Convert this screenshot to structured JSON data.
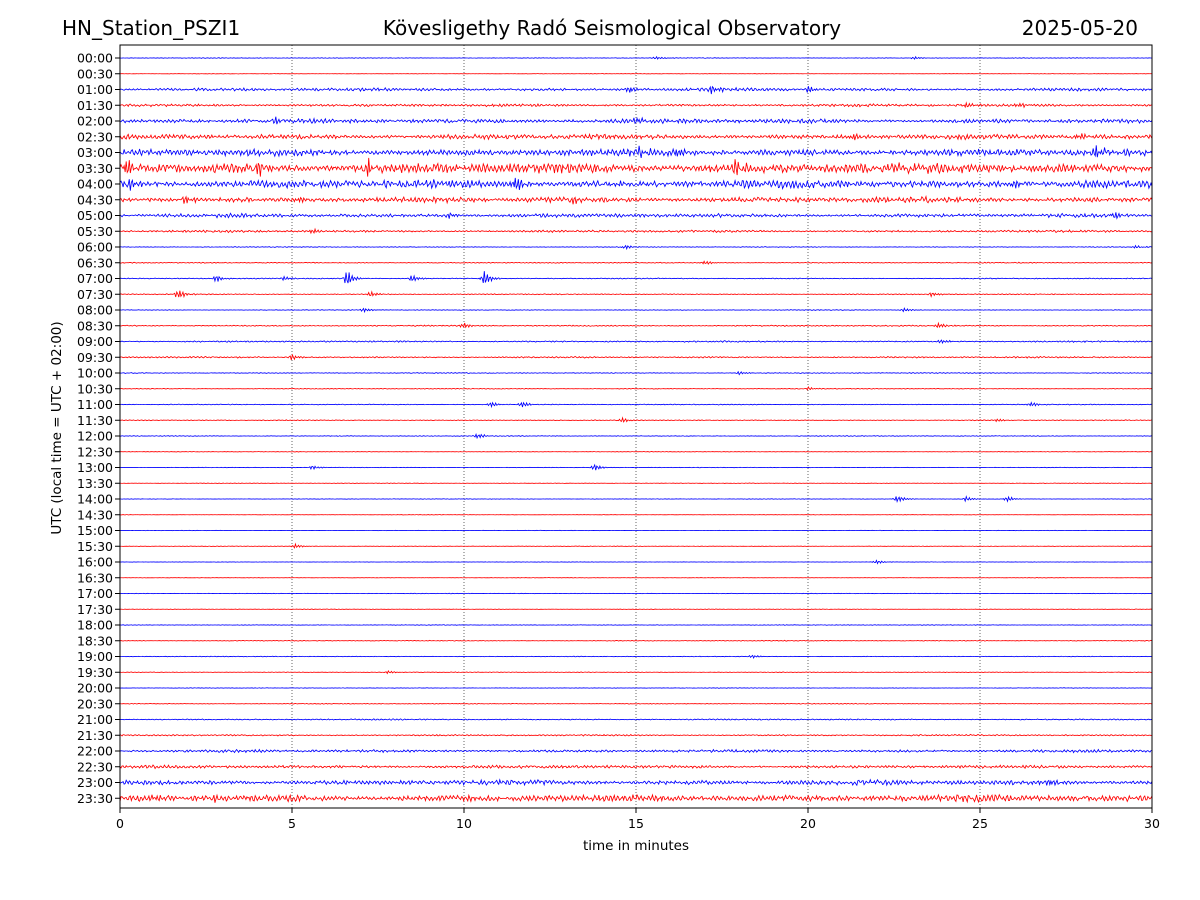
{
  "header": {
    "station": "HN_Station_PSZI1",
    "observatory": "Kövesligethy Radó Seismological Observatory",
    "date": "2025-05-20"
  },
  "chart_data": {
    "type": "line",
    "chart_kind": "seismic helicorder",
    "xlabel": "time in minutes",
    "ylabel": "UTC (local time = UTC + 02:00)",
    "xlim": [
      0,
      30
    ],
    "x_ticks": [
      "0",
      "5",
      "10",
      "15",
      "20",
      "25",
      "30"
    ],
    "x_tick_values": [
      0,
      5,
      10,
      15,
      20,
      25,
      30
    ],
    "vertical_gridlines_at": [
      5,
      10,
      15,
      20,
      25
    ],
    "grid": "vertical dotted",
    "trace_colors": [
      "#0000ff",
      "#ff0000"
    ],
    "rows": [
      {
        "label": "00:00",
        "activity": 0.05,
        "events": [
          {
            "t": 15.6,
            "a": 0.3
          },
          {
            "t": 23.1,
            "a": 0.25
          }
        ]
      },
      {
        "label": "00:30",
        "activity": 0.03,
        "events": []
      },
      {
        "label": "01:00",
        "activity": 0.25,
        "events": [
          {
            "t": 14.8,
            "a": 0.6
          },
          {
            "t": 17.2,
            "a": 0.7
          },
          {
            "t": 20.0,
            "a": 0.6
          }
        ]
      },
      {
        "label": "01:30",
        "activity": 0.22,
        "events": [
          {
            "t": 24.6,
            "a": 0.5
          },
          {
            "t": 26.1,
            "a": 0.5
          }
        ]
      },
      {
        "label": "02:00",
        "activity": 0.35,
        "events": [
          {
            "t": 4.5,
            "a": 0.5
          },
          {
            "t": 15.0,
            "a": 0.6
          }
        ]
      },
      {
        "label": "02:30",
        "activity": 0.4,
        "events": [
          {
            "t": 21.3,
            "a": 0.8
          },
          {
            "t": 27.9,
            "a": 0.6
          }
        ]
      },
      {
        "label": "03:00",
        "activity": 0.55,
        "events": [
          {
            "t": 15.1,
            "a": 0.9
          },
          {
            "t": 16.2,
            "a": 0.9
          },
          {
            "t": 28.4,
            "a": 1.2
          }
        ]
      },
      {
        "label": "03:30",
        "activity": 0.85,
        "events": [
          {
            "t": 0.2,
            "a": 1.4
          },
          {
            "t": 4.0,
            "a": 1.5
          },
          {
            "t": 7.2,
            "a": 1.4
          },
          {
            "t": 17.9,
            "a": 1.2
          }
        ]
      },
      {
        "label": "04:00",
        "activity": 0.65,
        "events": [
          {
            "t": 0.3,
            "a": 1.0
          },
          {
            "t": 11.5,
            "a": 1.5
          },
          {
            "t": 26.0,
            "a": 0.9
          }
        ]
      },
      {
        "label": "04:30",
        "activity": 0.45,
        "events": [
          {
            "t": 1.9,
            "a": 0.8
          },
          {
            "t": 5.2,
            "a": 0.6
          },
          {
            "t": 13.2,
            "a": 0.7
          }
        ]
      },
      {
        "label": "05:00",
        "activity": 0.3,
        "events": [
          {
            "t": 9.6,
            "a": 0.5
          },
          {
            "t": 28.9,
            "a": 0.6
          }
        ]
      },
      {
        "label": "05:30",
        "activity": 0.18,
        "events": [
          {
            "t": 5.6,
            "a": 0.5
          }
        ]
      },
      {
        "label": "06:00",
        "activity": 0.06,
        "events": [
          {
            "t": 14.7,
            "a": 0.4
          },
          {
            "t": 29.5,
            "a": 0.3
          }
        ]
      },
      {
        "label": "06:30",
        "activity": 0.08,
        "events": [
          {
            "t": 17.0,
            "a": 0.4
          }
        ]
      },
      {
        "label": "07:00",
        "activity": 0.08,
        "events": [
          {
            "t": 2.8,
            "a": 0.6
          },
          {
            "t": 4.8,
            "a": 0.4
          },
          {
            "t": 6.6,
            "a": 1.4
          },
          {
            "t": 8.5,
            "a": 0.7
          },
          {
            "t": 10.6,
            "a": 1.3
          }
        ]
      },
      {
        "label": "07:30",
        "activity": 0.08,
        "events": [
          {
            "t": 1.7,
            "a": 1.0
          },
          {
            "t": 7.3,
            "a": 0.5
          },
          {
            "t": 23.6,
            "a": 0.4
          }
        ]
      },
      {
        "label": "08:00",
        "activity": 0.06,
        "events": [
          {
            "t": 7.1,
            "a": 0.4
          },
          {
            "t": 22.8,
            "a": 0.3
          }
        ]
      },
      {
        "label": "08:30",
        "activity": 0.1,
        "events": [
          {
            "t": 10.0,
            "a": 0.5
          },
          {
            "t": 23.8,
            "a": 0.5
          }
        ]
      },
      {
        "label": "09:00",
        "activity": 0.12,
        "events": [
          {
            "t": 23.9,
            "a": 0.4
          }
        ]
      },
      {
        "label": "09:30",
        "activity": 0.12,
        "events": [
          {
            "t": 5.0,
            "a": 0.5
          }
        ]
      },
      {
        "label": "10:00",
        "activity": 0.07,
        "events": [
          {
            "t": 18.0,
            "a": 0.3
          }
        ]
      },
      {
        "label": "10:30",
        "activity": 0.06,
        "events": [
          {
            "t": 20.0,
            "a": 0.3
          }
        ]
      },
      {
        "label": "11:00",
        "activity": 0.07,
        "events": [
          {
            "t": 10.8,
            "a": 0.5
          },
          {
            "t": 11.7,
            "a": 0.5
          },
          {
            "t": 26.5,
            "a": 0.4
          }
        ]
      },
      {
        "label": "11:30",
        "activity": 0.07,
        "events": [
          {
            "t": 14.6,
            "a": 0.4
          },
          {
            "t": 25.5,
            "a": 0.3
          }
        ]
      },
      {
        "label": "12:00",
        "activity": 0.06,
        "events": [
          {
            "t": 10.4,
            "a": 0.5
          }
        ]
      },
      {
        "label": "12:30",
        "activity": 0.04,
        "events": []
      },
      {
        "label": "13:00",
        "activity": 0.04,
        "events": [
          {
            "t": 5.6,
            "a": 0.4
          },
          {
            "t": 13.8,
            "a": 0.6
          }
        ]
      },
      {
        "label": "13:30",
        "activity": 0.04,
        "events": []
      },
      {
        "label": "14:00",
        "activity": 0.04,
        "events": [
          {
            "t": 22.6,
            "a": 0.7
          },
          {
            "t": 24.6,
            "a": 0.4
          },
          {
            "t": 25.8,
            "a": 0.5
          }
        ]
      },
      {
        "label": "14:30",
        "activity": 0.03,
        "events": []
      },
      {
        "label": "15:00",
        "activity": 0.03,
        "events": []
      },
      {
        "label": "15:30",
        "activity": 0.04,
        "events": [
          {
            "t": 5.1,
            "a": 0.4
          }
        ]
      },
      {
        "label": "16:00",
        "activity": 0.03,
        "events": [
          {
            "t": 22.0,
            "a": 0.4
          }
        ]
      },
      {
        "label": "16:30",
        "activity": 0.03,
        "events": []
      },
      {
        "label": "17:00",
        "activity": 0.04,
        "events": []
      },
      {
        "label": "17:30",
        "activity": 0.04,
        "events": []
      },
      {
        "label": "18:00",
        "activity": 0.05,
        "events": []
      },
      {
        "label": "18:30",
        "activity": 0.06,
        "events": []
      },
      {
        "label": "19:00",
        "activity": 0.05,
        "events": [
          {
            "t": 18.4,
            "a": 0.3
          }
        ]
      },
      {
        "label": "19:30",
        "activity": 0.05,
        "events": [
          {
            "t": 7.8,
            "a": 0.3
          }
        ]
      },
      {
        "label": "20:00",
        "activity": 0.04,
        "events": []
      },
      {
        "label": "20:30",
        "activity": 0.06,
        "events": []
      },
      {
        "label": "21:00",
        "activity": 0.1,
        "events": []
      },
      {
        "label": "21:30",
        "activity": 0.12,
        "events": []
      },
      {
        "label": "22:00",
        "activity": 0.22,
        "events": []
      },
      {
        "label": "22:30",
        "activity": 0.25,
        "events": []
      },
      {
        "label": "23:00",
        "activity": 0.4,
        "events": [
          {
            "t": 27.0,
            "a": 0.6
          }
        ]
      },
      {
        "label": "23:30",
        "activity": 0.55,
        "events": [
          {
            "t": 1.0,
            "a": 0.8
          },
          {
            "t": 2.8,
            "a": 0.7
          }
        ]
      }
    ]
  }
}
